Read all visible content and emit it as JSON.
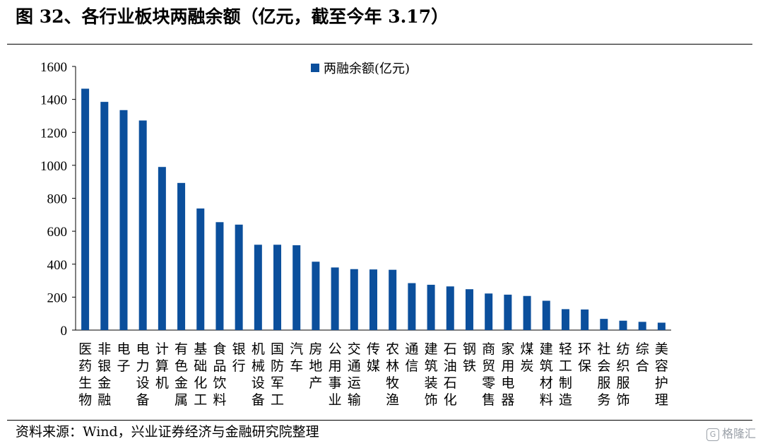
{
  "title": "图 32、各行业板块两融余额（亿元，截至今年 3.17）",
  "source": "资料来源：Wind，兴业证券经济与金融研究院整理",
  "watermark": "格隆汇",
  "chart_data": {
    "type": "bar",
    "series": [
      {
        "name": "两融余额(亿元)",
        "color": "#0b4f9c",
        "values": [
          1465,
          1385,
          1335,
          1272,
          990,
          893,
          738,
          655,
          640,
          518,
          518,
          515,
          415,
          380,
          370,
          368,
          366,
          285,
          275,
          265,
          248,
          222,
          215,
          207,
          178,
          127,
          125,
          68,
          57,
          50,
          45
        ]
      }
    ],
    "categories": [
      "医药生物",
      "非银金融",
      "电子",
      "电力设备",
      "计算机",
      "有色金属",
      "基础化工",
      "食品饮料",
      "银行",
      "机械设备",
      "国防军工",
      "汽车",
      "房地产",
      "公用事业",
      "交通运输",
      "传媒",
      "农林牧渔",
      "通信",
      "建筑装饰",
      "石油石化",
      "钢铁",
      "商贸零售",
      "家用电器",
      "煤炭",
      "建筑材料",
      "轻工制造",
      "环保",
      "社会服务",
      "纺织服饰",
      "综合",
      "美容护理"
    ],
    "ylim": [
      0,
      1600
    ],
    "yticks": [
      "0",
      "200",
      "400",
      "600",
      "800",
      "1000",
      "1200",
      "1400",
      "1600"
    ],
    "legend_position": "top-center",
    "grid": false
  }
}
